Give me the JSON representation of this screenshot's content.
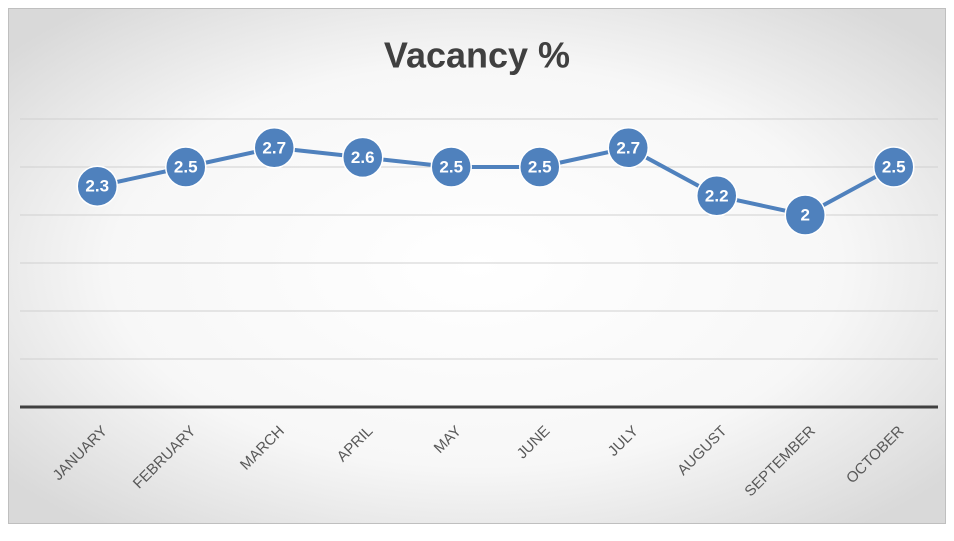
{
  "chart_data": {
    "type": "line",
    "title": "Vacancy %",
    "categories": [
      "JANUARY",
      "FEBRUARY",
      "MARCH",
      "APRIL",
      "MAY",
      "JUNE",
      "JULY",
      "AUGUST",
      "SEPTEMBER",
      "OCTOBER"
    ],
    "series": [
      {
        "name": "Vacancy %",
        "color": "#4f81bd",
        "values": [
          2.3,
          2.5,
          2.7,
          2.6,
          2.5,
          2.5,
          2.7,
          2.2,
          2,
          2.5
        ]
      }
    ],
    "ylim": [
      0,
      3
    ],
    "yticks": [
      0,
      0.5,
      1,
      1.5,
      2,
      2.5,
      3
    ],
    "grid": true
  }
}
